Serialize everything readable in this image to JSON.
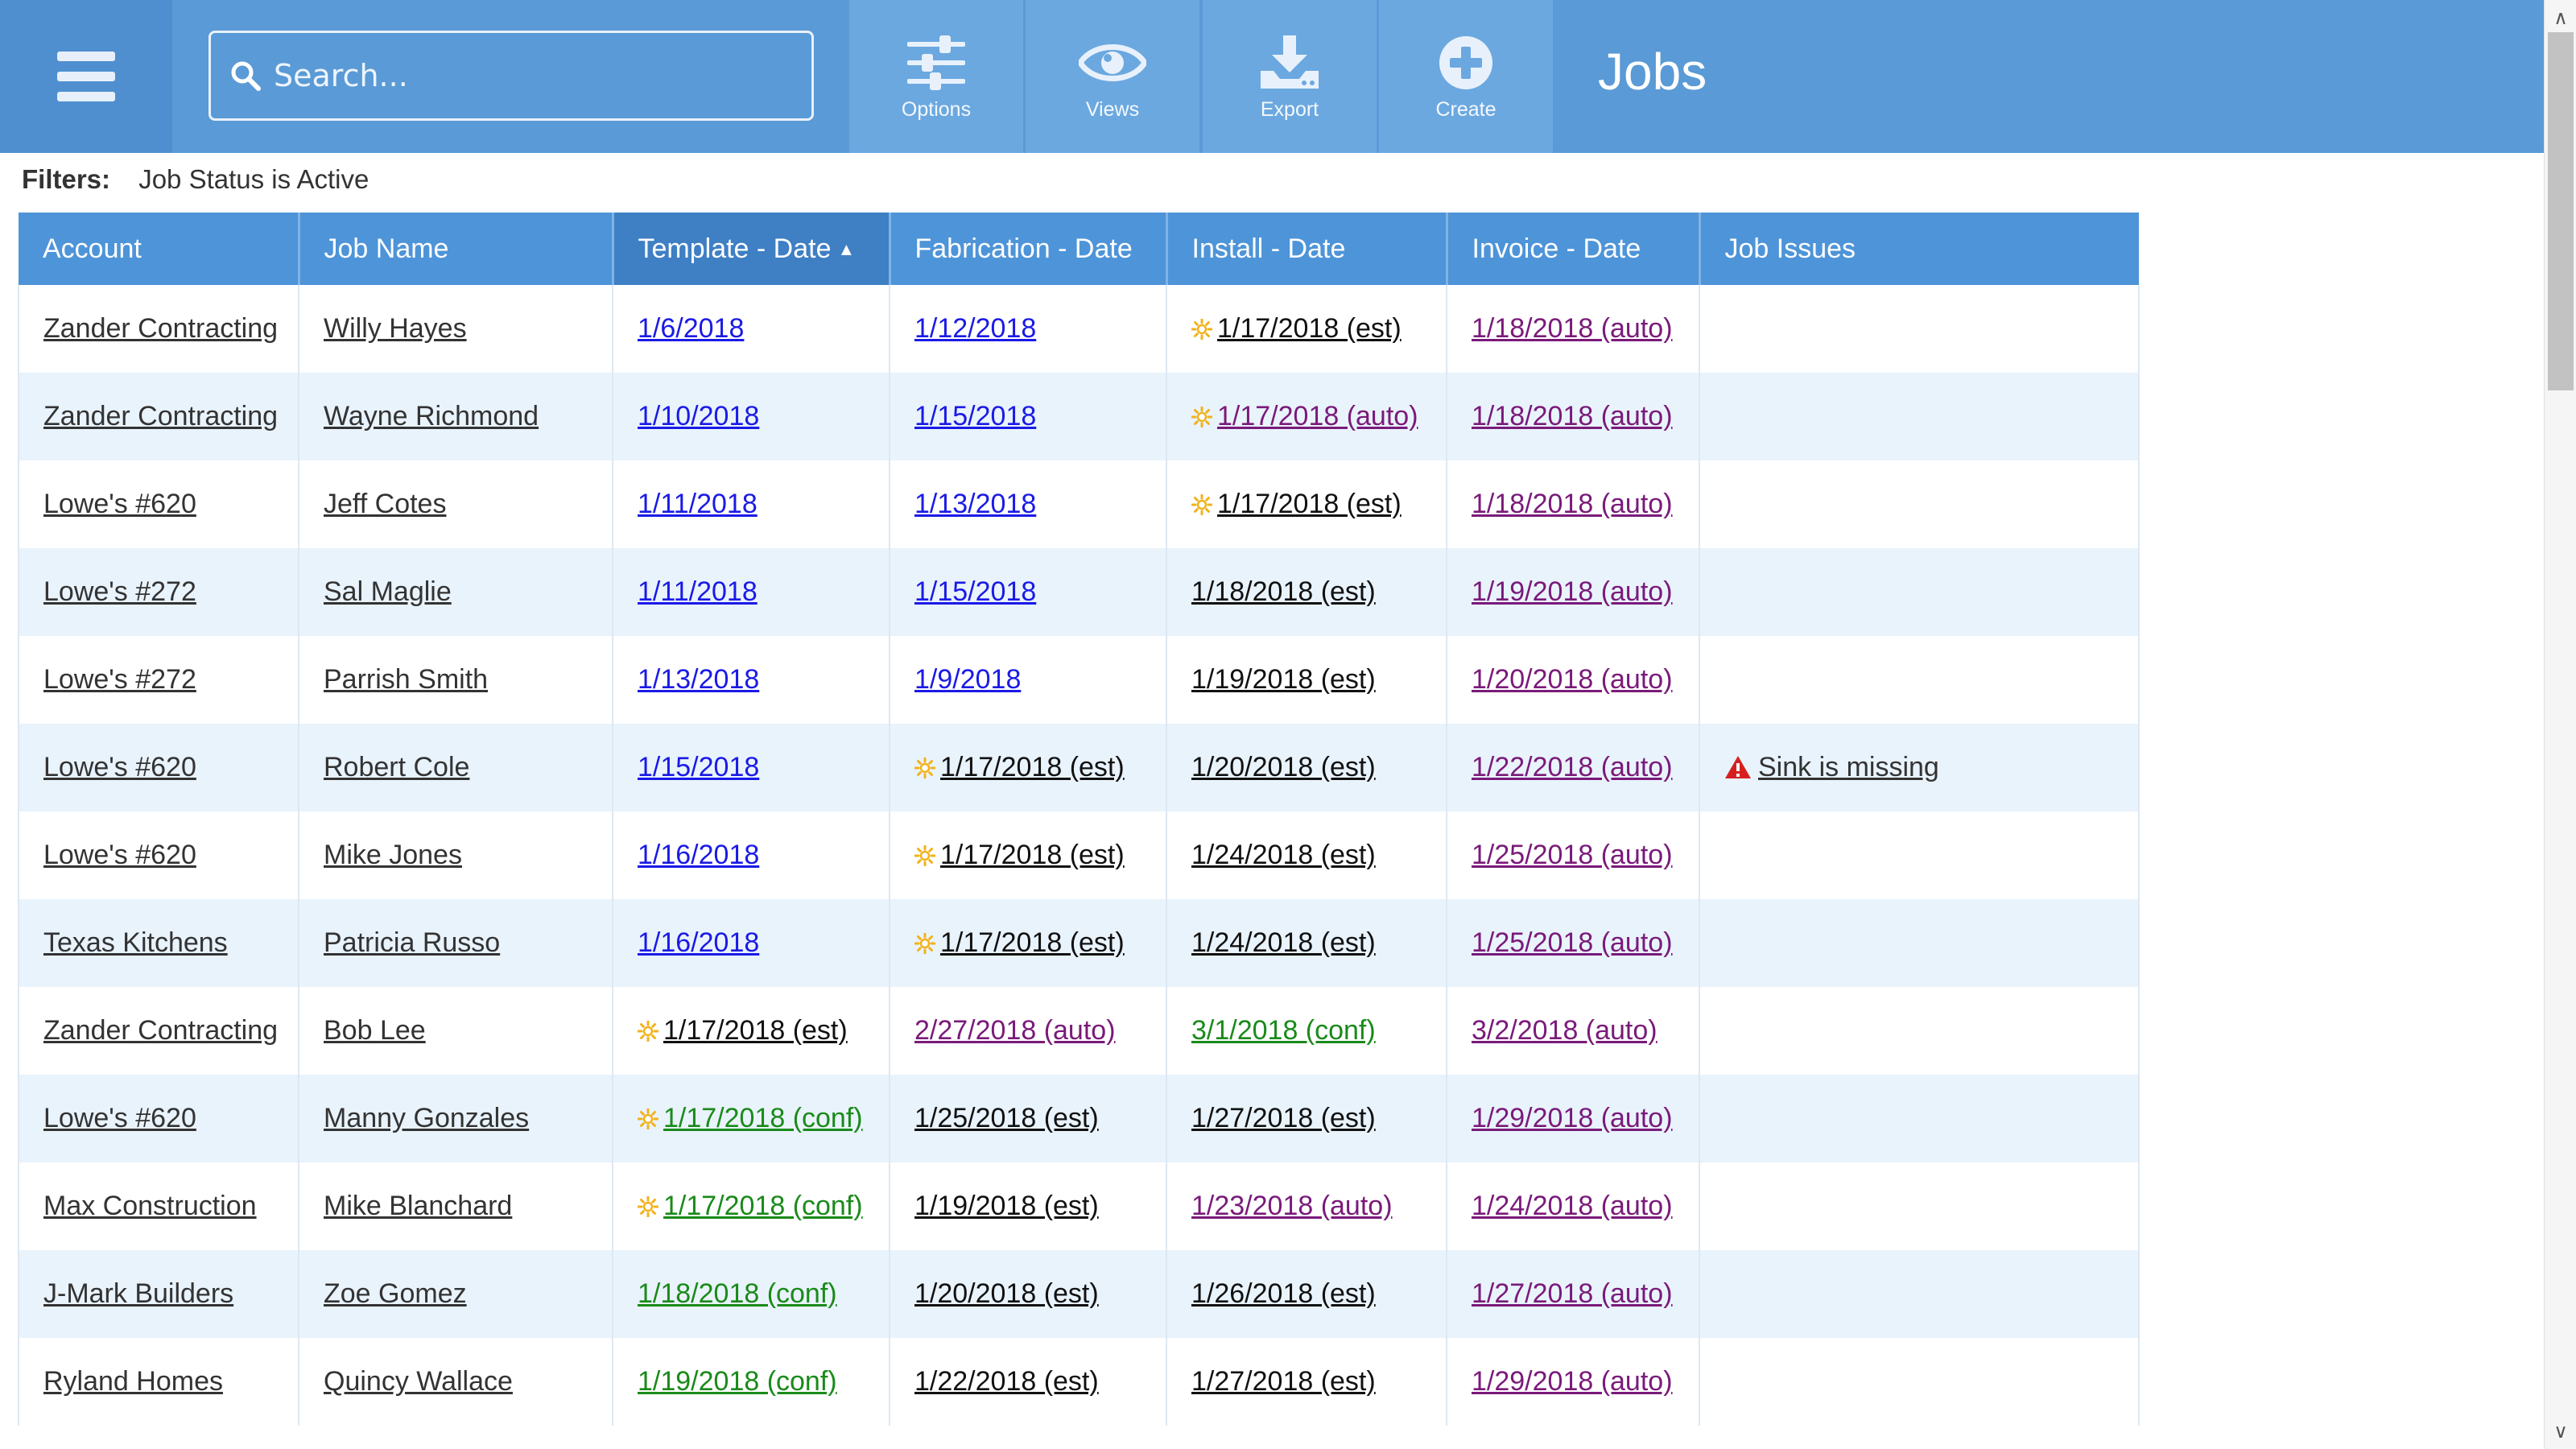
{
  "header": {
    "menu_icon": "hamburger-icon",
    "search_placeholder": "Search...",
    "tools": [
      {
        "label": "Options",
        "icon": "sliders-icon"
      },
      {
        "label": "Views",
        "icon": "eye-icon"
      },
      {
        "label": "Export",
        "icon": "download-icon"
      },
      {
        "label": "Create",
        "icon": "plus-circle-icon"
      }
    ],
    "title": "Jobs"
  },
  "filters": {
    "label": "Filters:",
    "value": "Job Status is Active"
  },
  "table": {
    "columns": [
      "Account",
      "Job Name",
      "Template - Date",
      "Fabrication - Date",
      "Install - Date",
      "Invoice - Date",
      "Job Issues"
    ],
    "sorted_column": "Template - Date",
    "colors": {
      "blue": "#1a1ae6",
      "black": "#111111",
      "purple": "#7a1a7a",
      "green": "#1a8a1a",
      "header": "#4e94d8",
      "alt_row": "#e9f3fc"
    },
    "rows": [
      {
        "account": "Zander Contracting",
        "job": "Willy Hayes",
        "template": {
          "text": "1/6/2018",
          "color": "blue",
          "sun": false
        },
        "fabrication": {
          "text": "1/12/2018",
          "color": "blue",
          "sun": false
        },
        "install": {
          "text": "1/17/2018 (est)",
          "color": "black",
          "sun": true
        },
        "invoice": {
          "text": "1/18/2018 (auto)",
          "color": "purple"
        },
        "issue": ""
      },
      {
        "account": "Zander Contracting",
        "job": "Wayne Richmond",
        "template": {
          "text": "1/10/2018",
          "color": "blue",
          "sun": false
        },
        "fabrication": {
          "text": "1/15/2018",
          "color": "blue",
          "sun": false
        },
        "install": {
          "text": "1/17/2018 (auto)",
          "color": "purple",
          "sun": true
        },
        "invoice": {
          "text": "1/18/2018 (auto)",
          "color": "purple"
        },
        "issue": ""
      },
      {
        "account": "Lowe's #620",
        "job": "Jeff Cotes",
        "template": {
          "text": "1/11/2018",
          "color": "blue",
          "sun": false
        },
        "fabrication": {
          "text": "1/13/2018",
          "color": "blue",
          "sun": false
        },
        "install": {
          "text": "1/17/2018 (est)",
          "color": "black",
          "sun": true
        },
        "invoice": {
          "text": "1/18/2018 (auto)",
          "color": "purple"
        },
        "issue": ""
      },
      {
        "account": "Lowe's #272",
        "job": "Sal Maglie",
        "template": {
          "text": "1/11/2018",
          "color": "blue",
          "sun": false
        },
        "fabrication": {
          "text": "1/15/2018",
          "color": "blue",
          "sun": false
        },
        "install": {
          "text": "1/18/2018 (est)",
          "color": "black",
          "sun": false
        },
        "invoice": {
          "text": "1/19/2018 (auto)",
          "color": "purple"
        },
        "issue": ""
      },
      {
        "account": "Lowe's #272",
        "job": "Parrish Smith",
        "template": {
          "text": "1/13/2018",
          "color": "blue",
          "sun": false
        },
        "fabrication": {
          "text": "1/9/2018",
          "color": "blue",
          "sun": false
        },
        "install": {
          "text": "1/19/2018 (est)",
          "color": "black",
          "sun": false
        },
        "invoice": {
          "text": "1/20/2018 (auto)",
          "color": "purple"
        },
        "issue": ""
      },
      {
        "account": "Lowe's #620",
        "job": "Robert Cole",
        "template": {
          "text": "1/15/2018",
          "color": "blue",
          "sun": false
        },
        "fabrication": {
          "text": "1/17/2018 (est)",
          "color": "black",
          "sun": true
        },
        "install": {
          "text": "1/20/2018 (est)",
          "color": "black",
          "sun": false
        },
        "invoice": {
          "text": "1/22/2018 (auto)",
          "color": "purple"
        },
        "issue": "Sink is missing"
      },
      {
        "account": "Lowe's #620",
        "job": "Mike Jones",
        "template": {
          "text": "1/16/2018",
          "color": "blue",
          "sun": false
        },
        "fabrication": {
          "text": "1/17/2018 (est)",
          "color": "black",
          "sun": true
        },
        "install": {
          "text": "1/24/2018 (est)",
          "color": "black",
          "sun": false
        },
        "invoice": {
          "text": "1/25/2018 (auto)",
          "color": "purple"
        },
        "issue": ""
      },
      {
        "account": "Texas Kitchens",
        "job": "Patricia Russo",
        "template": {
          "text": "1/16/2018",
          "color": "blue",
          "sun": false
        },
        "fabrication": {
          "text": "1/17/2018 (est)",
          "color": "black",
          "sun": true
        },
        "install": {
          "text": "1/24/2018 (est)",
          "color": "black",
          "sun": false
        },
        "invoice": {
          "text": "1/25/2018 (auto)",
          "color": "purple"
        },
        "issue": ""
      },
      {
        "account": "Zander Contracting",
        "job": "Bob Lee",
        "template": {
          "text": "1/17/2018 (est)",
          "color": "black",
          "sun": true
        },
        "fabrication": {
          "text": "2/27/2018 (auto)",
          "color": "purple",
          "sun": false
        },
        "install": {
          "text": "3/1/2018 (conf)",
          "color": "green",
          "sun": false
        },
        "invoice": {
          "text": "3/2/2018 (auto)",
          "color": "purple"
        },
        "issue": ""
      },
      {
        "account": "Lowe's #620",
        "job": "Manny Gonzales",
        "template": {
          "text": "1/17/2018 (conf)",
          "color": "green",
          "sun": true
        },
        "fabrication": {
          "text": "1/25/2018 (est)",
          "color": "black",
          "sun": false
        },
        "install": {
          "text": "1/27/2018 (est)",
          "color": "black",
          "sun": false
        },
        "invoice": {
          "text": "1/29/2018 (auto)",
          "color": "purple"
        },
        "issue": ""
      },
      {
        "account": "Max Construction",
        "job": "Mike Blanchard",
        "template": {
          "text": "1/17/2018 (conf)",
          "color": "green",
          "sun": true
        },
        "fabrication": {
          "text": "1/19/2018 (est)",
          "color": "black",
          "sun": false
        },
        "install": {
          "text": "1/23/2018 (auto)",
          "color": "purple",
          "sun": false
        },
        "invoice": {
          "text": "1/24/2018 (auto)",
          "color": "purple"
        },
        "issue": ""
      },
      {
        "account": "J-Mark Builders",
        "job": "Zoe Gomez",
        "template": {
          "text": "1/18/2018 (conf)",
          "color": "green",
          "sun": false
        },
        "fabrication": {
          "text": "1/20/2018 (est)",
          "color": "black",
          "sun": false
        },
        "install": {
          "text": "1/26/2018 (est)",
          "color": "black",
          "sun": false
        },
        "invoice": {
          "text": "1/27/2018 (auto)",
          "color": "purple"
        },
        "issue": ""
      },
      {
        "account": "Ryland Homes",
        "job": "Quincy Wallace",
        "template": {
          "text": "1/19/2018 (conf)",
          "color": "green",
          "sun": false
        },
        "fabrication": {
          "text": "1/22/2018 (est)",
          "color": "black",
          "sun": false
        },
        "install": {
          "text": "1/27/2018 (est)",
          "color": "black",
          "sun": false
        },
        "invoice": {
          "text": "1/29/2018 (auto)",
          "color": "purple"
        },
        "issue": ""
      }
    ]
  }
}
